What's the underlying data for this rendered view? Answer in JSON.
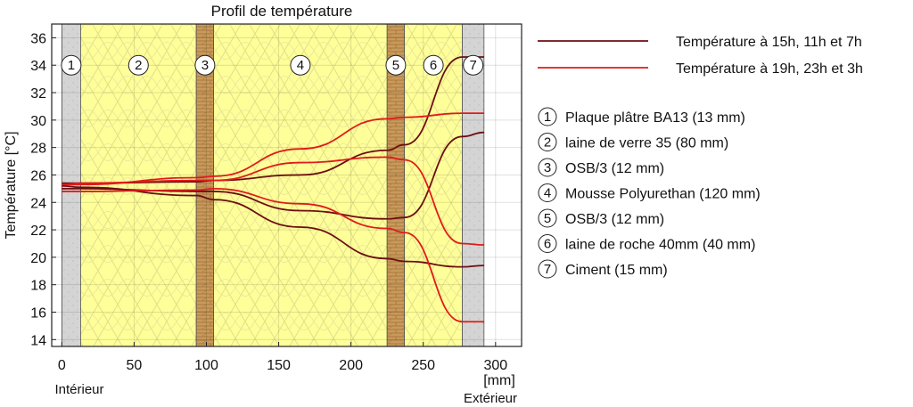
{
  "chart_data": {
    "type": "line",
    "title": "Profil de température",
    "xlabel": "[mm]",
    "ylabel": "Température [°C]",
    "x_side_labels": {
      "left": "Intérieur",
      "right": "Extérieur"
    },
    "xlim": [
      -7,
      318
    ],
    "ylim": [
      13.5,
      37
    ],
    "xticks": [
      0,
      50,
      100,
      150,
      200,
      250,
      300
    ],
    "yticks": [
      14,
      16,
      18,
      20,
      22,
      24,
      26,
      28,
      30,
      32,
      34,
      36
    ],
    "grid": true,
    "legend_position": "right",
    "layers": [
      {
        "num": "1",
        "name": "Plaque plâtre BA13 (13 mm)",
        "from": 0,
        "to": 13,
        "kind": "plaster",
        "fill": "#d4d4d4"
      },
      {
        "num": "2",
        "name": "laine de verre 35 (80 mm)",
        "from": 13,
        "to": 93,
        "kind": "wool",
        "fill": "#ffff99"
      },
      {
        "num": "3",
        "name": "OSB/3 (12 mm)",
        "from": 93,
        "to": 105,
        "kind": "osb",
        "fill": "#c99a5b"
      },
      {
        "num": "4",
        "name": "Mousse Polyurethan (120 mm)",
        "from": 105,
        "to": 225,
        "kind": "wool",
        "fill": "#ffff99"
      },
      {
        "num": "5",
        "name": "OSB/3 (12 mm)",
        "from": 225,
        "to": 237,
        "kind": "osb",
        "fill": "#c99a5b"
      },
      {
        "num": "6",
        "name": "laine de roche 40mm (40 mm)",
        "from": 237,
        "to": 277,
        "kind": "wool",
        "fill": "#ffff99"
      },
      {
        "num": "7",
        "name": "Ciment (15 mm)",
        "from": 277,
        "to": 292,
        "kind": "plaster",
        "fill": "#d4d4d4"
      }
    ],
    "groups": [
      {
        "label": "Température à 15h, 11h et 7h",
        "color": "#6b0f12"
      },
      {
        "label": "Température à 19h, 23h et 3h",
        "color": "#e01b1b"
      }
    ],
    "series": [
      {
        "group": 0,
        "x": [
          0,
          13,
          93,
          105,
          165,
          225,
          237,
          277,
          292
        ],
        "y": [
          25.4,
          25.4,
          25.5,
          25.6,
          26.0,
          27.8,
          28.2,
          34.6,
          34.6
        ]
      },
      {
        "group": 0,
        "x": [
          0,
          13,
          93,
          105,
          165,
          225,
          237,
          277,
          292
        ],
        "y": [
          25.0,
          25.0,
          24.8,
          24.8,
          23.4,
          22.8,
          22.9,
          28.8,
          29.1
        ]
      },
      {
        "group": 0,
        "x": [
          0,
          13,
          93,
          105,
          165,
          225,
          237,
          277,
          292
        ],
        "y": [
          25.2,
          25.1,
          24.5,
          24.2,
          22.2,
          19.9,
          19.7,
          19.3,
          19.4
        ]
      },
      {
        "group": 1,
        "x": [
          0,
          13,
          93,
          105,
          165,
          225,
          237,
          277,
          292
        ],
        "y": [
          25.3,
          25.3,
          25.8,
          25.9,
          27.9,
          30.1,
          30.2,
          30.5,
          30.5
        ]
      },
      {
        "group": 1,
        "x": [
          0,
          13,
          93,
          105,
          165,
          225,
          237,
          277,
          292
        ],
        "y": [
          25.3,
          25.4,
          25.6,
          25.6,
          26.9,
          27.3,
          27.1,
          21.0,
          20.9
        ]
      },
      {
        "group": 1,
        "x": [
          0,
          13,
          93,
          105,
          165,
          225,
          237,
          277,
          292
        ],
        "y": [
          24.8,
          24.8,
          24.9,
          25.0,
          23.9,
          22.1,
          21.8,
          15.3,
          15.3
        ]
      }
    ]
  }
}
